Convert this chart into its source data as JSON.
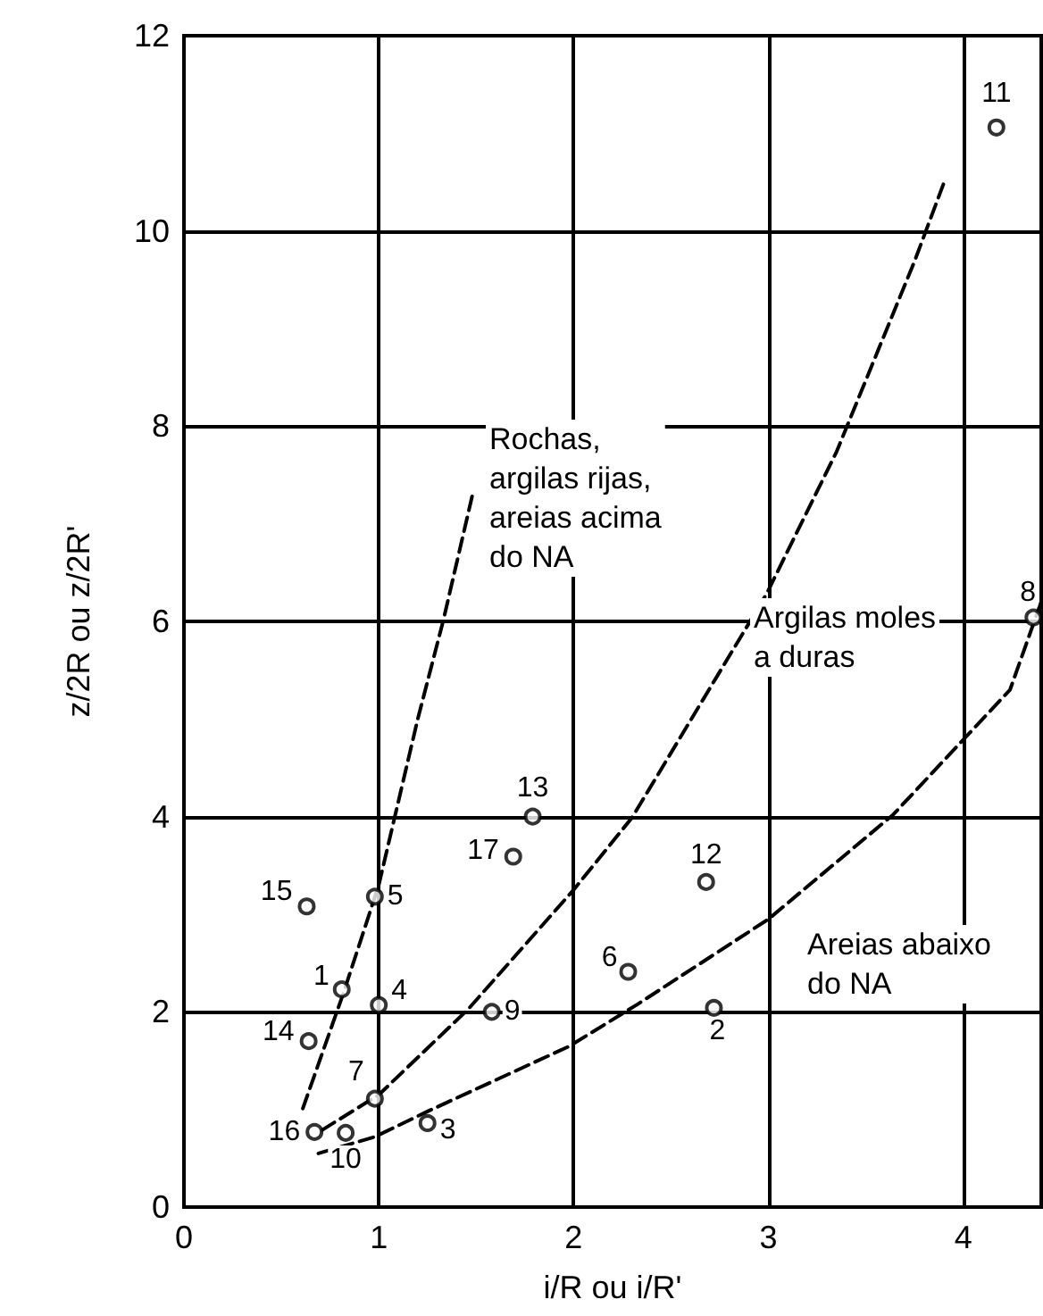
{
  "chart_data": {
    "type": "scatter",
    "xlabel": "i/R ou i/R'",
    "ylabel": "z/2R ou z/2R'",
    "xlim": [
      0,
      4.4
    ],
    "xticks": [
      0,
      1,
      2,
      3,
      4
    ],
    "ylim": [
      0,
      12
    ],
    "yticks": [
      0,
      2,
      4,
      6,
      8,
      10,
      12
    ],
    "grid": true,
    "series": [
      {
        "marker": "circle",
        "color": "#000000",
        "x": [
          0.81,
          2.72,
          1.25,
          1.0,
          0.98,
          2.28,
          0.98,
          4.36,
          1.58,
          0.83,
          4.17,
          2.68,
          1.79,
          0.64,
          0.63,
          0.67,
          1.69
        ],
        "values": [
          2.23,
          2.04,
          0.86,
          2.07,
          3.18,
          2.41,
          1.11,
          6.04,
          2.0,
          0.76,
          11.06,
          3.33,
          4.0,
          1.7,
          3.08,
          0.77,
          3.59
        ]
      },
      {
        "type": "line",
        "marker": "none",
        "line_style": "dashed",
        "color": "#000000",
        "x": [
          0.61,
          0.82,
          1.0,
          1.2,
          1.33,
          1.48
        ],
        "values": [
          1.01,
          2.2,
          3.3,
          5.0,
          6.0,
          7.29
        ]
      },
      {
        "type": "line",
        "marker": "none",
        "line_style": "dashed",
        "color": "#000000",
        "x": [
          0.71,
          1.0,
          1.46,
          2.0,
          2.3,
          2.99,
          3.35,
          3.75,
          3.9
        ],
        "values": [
          0.79,
          1.15,
          2.03,
          3.25,
          3.99,
          6.28,
          7.74,
          9.69,
          10.49
        ]
      },
      {
        "type": "line",
        "marker": "none",
        "line_style": "dashed",
        "color": "#000000",
        "x": [
          0.69,
          0.98,
          1.25,
          1.98,
          2.33,
          3.0,
          3.64,
          4.24,
          4.4
        ],
        "values": [
          0.55,
          0.72,
          0.98,
          1.65,
          2.08,
          2.95,
          4.02,
          5.3,
          6.2
        ]
      }
    ],
    "annotations": [
      "Rochas,\nargilas rijas,\nareias acima\ndo NA",
      "Argilas moles\na duras",
      "Areias abaixo\ndo NA",
      {
        "text": "1",
        "x": 0.81,
        "y": 2.23
      },
      {
        "text": "2",
        "x": 2.72,
        "y": 2.04
      },
      {
        "text": "3",
        "x": 1.25,
        "y": 0.86
      },
      {
        "text": "4",
        "x": 1.0,
        "y": 2.07
      },
      {
        "text": "5",
        "x": 0.98,
        "y": 3.18
      },
      {
        "text": "6",
        "x": 2.28,
        "y": 2.41
      },
      {
        "text": "7",
        "x": 0.98,
        "y": 1.11
      },
      {
        "text": "8",
        "x": 4.36,
        "y": 6.04
      },
      {
        "text": "9",
        "x": 1.58,
        "y": 2.0
      },
      {
        "text": "10",
        "x": 0.83,
        "y": 0.76
      },
      {
        "text": "11",
        "x": 4.17,
        "y": 11.06
      },
      {
        "text": "12",
        "x": 2.68,
        "y": 3.33
      },
      {
        "text": "13",
        "x": 1.79,
        "y": 4.0
      },
      {
        "text": "14",
        "x": 0.64,
        "y": 1.7
      },
      {
        "text": "15",
        "x": 0.63,
        "y": 3.08
      },
      {
        "text": "16",
        "x": 0.67,
        "y": 0.77
      },
      {
        "text": "17",
        "x": 1.69,
        "y": 3.59
      }
    ]
  }
}
